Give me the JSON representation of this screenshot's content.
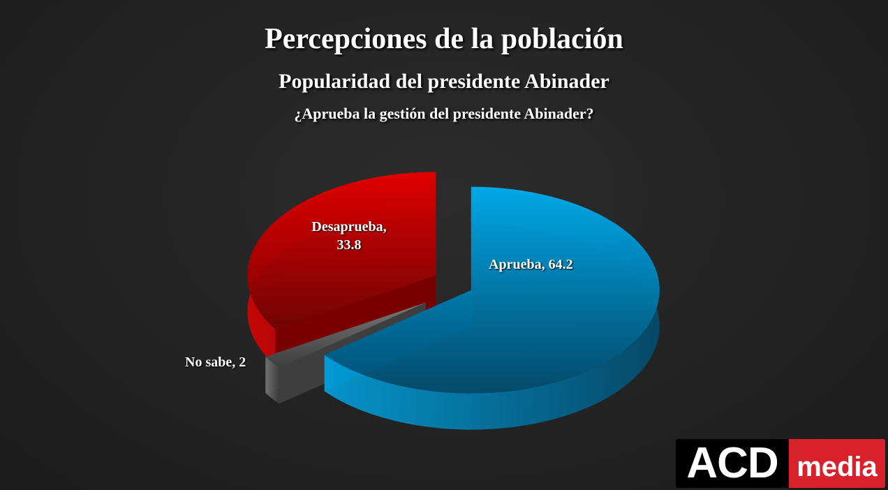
{
  "chart_data": {
    "type": "pie",
    "title": "Percepciones de la población",
    "subtitle": "Popularidad del presidente Abinader",
    "question": "¿Aprueba la gestión del presidente Abinader?",
    "slices": [
      {
        "name": "Aprueba",
        "value": 64.2,
        "label": "Aprueba, 64.2",
        "color": "#00a8e8"
      },
      {
        "name": "No sabe",
        "value": 2,
        "label": "No sabe, 2",
        "color": "#7a7a7a"
      },
      {
        "name": "Desaprueba",
        "value": 33.8,
        "label_line1": "Desaprueba,",
        "label_line2": "33.8",
        "color": "#e00000"
      }
    ],
    "style": "3d-exploded"
  },
  "logo": {
    "part1": "ACD",
    "part2": "media"
  }
}
